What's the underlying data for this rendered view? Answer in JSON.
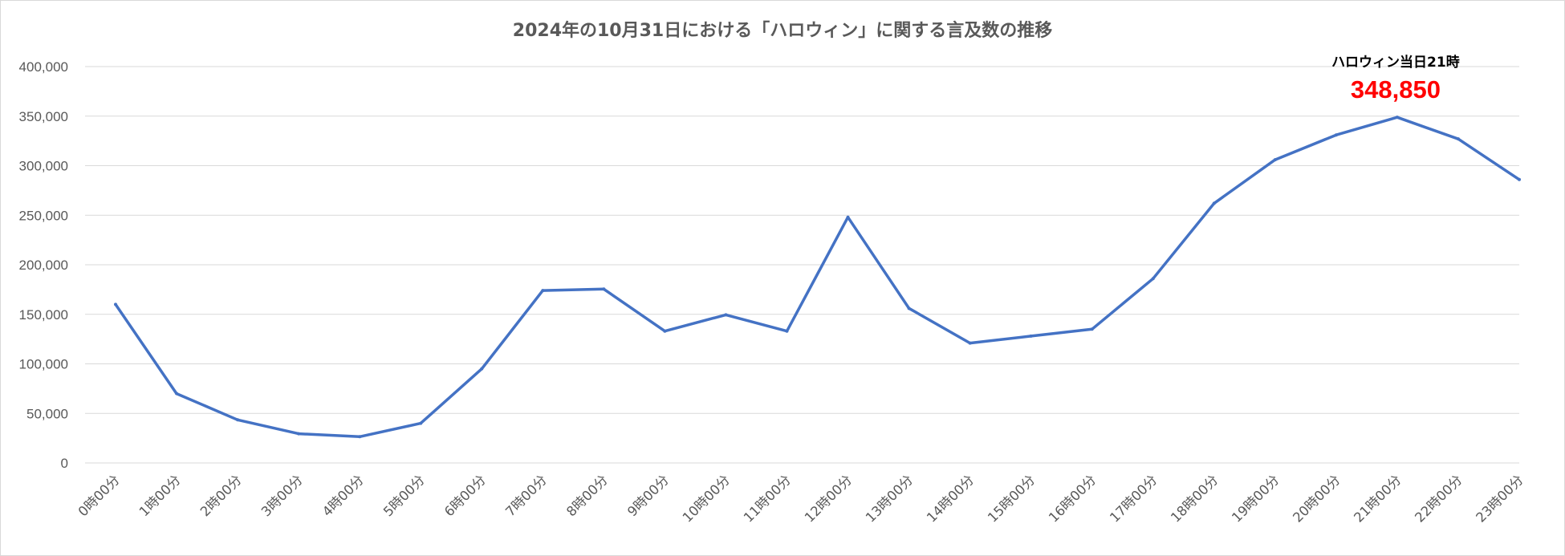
{
  "chart_data": {
    "type": "line",
    "title": "2024年の10月31日における「ハロウィン」に関する言及数の推移",
    "xlabel": "",
    "ylabel": "",
    "categories": [
      "0時00分",
      "1時00分",
      "2時00分",
      "3時00分",
      "4時00分",
      "5時00分",
      "6時00分",
      "7時00分",
      "8時00分",
      "9時00分",
      "10時00分",
      "11時00分",
      "12時00分",
      "13時00分",
      "14時00分",
      "15時00分",
      "16時00分",
      "17時00分",
      "18時00分",
      "19時00分",
      "20時00分",
      "21時00分",
      "22時00分",
      "23時00分"
    ],
    "series": [
      {
        "values": [
          160000,
          70000,
          43500,
          29500,
          26500,
          40000,
          95000,
          174000,
          175500,
          133000,
          149500,
          133000,
          248000,
          156000,
          121000,
          128000,
          135000,
          186000,
          262000,
          306000,
          331000,
          348850,
          327000,
          286000
        ],
        "color": "#4472c4"
      }
    ],
    "ylim": [
      0,
      400000
    ],
    "yticks": [
      "0",
      "50,000",
      "100,000",
      "150,000",
      "200,000",
      "250,000",
      "300,000",
      "350,000",
      "400,000"
    ],
    "grid": true,
    "legend": "none",
    "annotation": {
      "label": "ハロウィン当日21時",
      "value": "348,850",
      "value_color": "#ff0000",
      "category": "21時00分"
    },
    "colors": {
      "line": "#4472c4",
      "grid": "#d9d9d9",
      "text": "#595959"
    }
  }
}
